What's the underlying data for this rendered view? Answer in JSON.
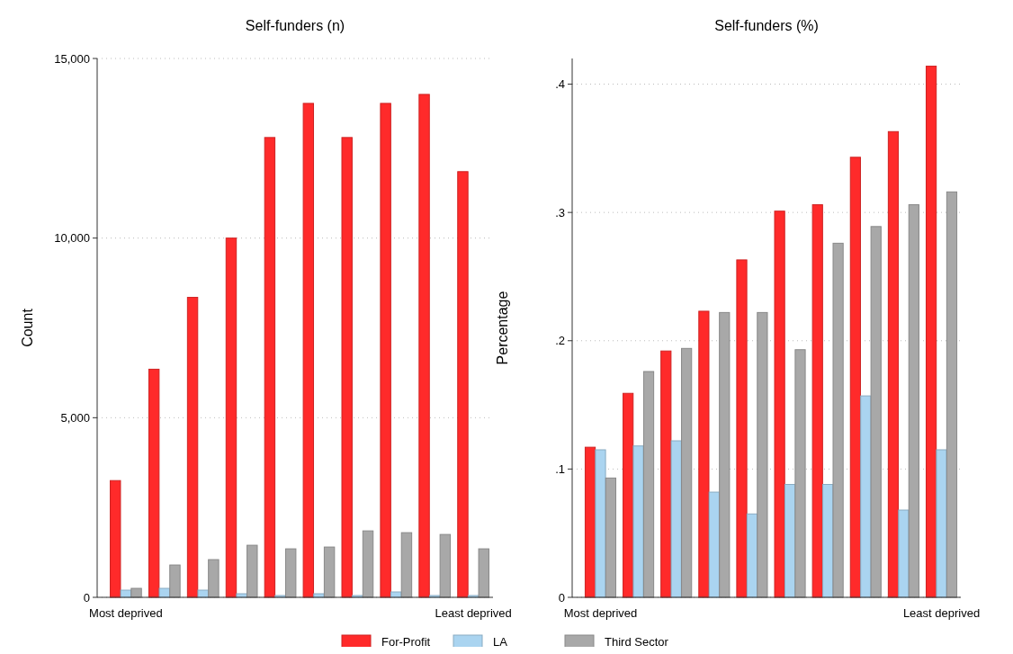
{
  "chart_data": [
    {
      "type": "bar",
      "title": "Self-funders (n)",
      "ylabel": "Count",
      "categories": [
        "Most deprived",
        null,
        null,
        null,
        null,
        null,
        null,
        null,
        null,
        "Least deprived"
      ],
      "series": [
        {
          "name": "For-Profit",
          "color": "#ff2a2a",
          "values": [
            3250,
            6350,
            8350,
            10000,
            12800,
            13750,
            12800,
            13750,
            14000,
            11850
          ]
        },
        {
          "name": "LA",
          "color": "#aad4f0",
          "values": [
            200,
            250,
            200,
            100,
            50,
            100,
            50,
            150,
            50,
            50
          ]
        },
        {
          "name": "Third Sector",
          "color": "#a8a8a8",
          "values": [
            250,
            900,
            1050,
            1450,
            1350,
            1400,
            1850,
            1800,
            1750,
            1350
          ]
        }
      ],
      "ylim": [
        0,
        15000
      ],
      "yticks": [
        {
          "value": 0,
          "label": "0"
        },
        {
          "value": 5000,
          "label": "5,000"
        },
        {
          "value": 10000,
          "label": "10,000"
        },
        {
          "value": 15000,
          "label": "15,000"
        }
      ],
      "grid": "y",
      "legend": "bottom"
    },
    {
      "type": "bar",
      "title": "Self-funders (%)",
      "ylabel": "Percentage",
      "categories": [
        "Most deprived",
        null,
        null,
        null,
        null,
        null,
        null,
        null,
        null,
        "Least deprived"
      ],
      "series": [
        {
          "name": "For-Profit",
          "color": "#ff2a2a",
          "values": [
            0.117,
            0.159,
            0.192,
            0.223,
            0.263,
            0.301,
            0.306,
            0.343,
            0.363,
            0.414
          ]
        },
        {
          "name": "LA",
          "color": "#aad4f0",
          "values": [
            0.115,
            0.118,
            0.122,
            0.082,
            0.065,
            0.088,
            0.088,
            0.157,
            0.068,
            0.115
          ]
        },
        {
          "name": "Third Sector",
          "color": "#a8a8a8",
          "values": [
            0.093,
            0.176,
            0.194,
            0.222,
            0.222,
            0.193,
            0.276,
            0.289,
            0.306,
            0.316
          ]
        }
      ],
      "ylim": [
        0,
        0.42
      ],
      "yticks": [
        {
          "value": 0,
          "label": "0"
        },
        {
          "value": 0.1,
          "label": ".1"
        },
        {
          "value": 0.2,
          "label": ".2"
        },
        {
          "value": 0.3,
          "label": ".3"
        },
        {
          "value": 0.4,
          "label": ".4"
        }
      ],
      "grid": "y",
      "legend": "bottom"
    }
  ]
}
